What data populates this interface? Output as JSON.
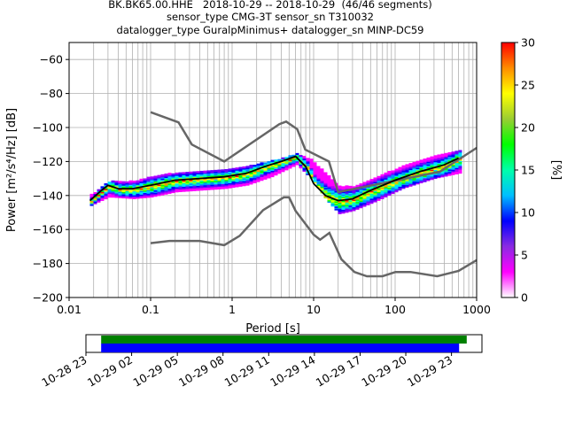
{
  "chart_data": {
    "type": "heatmap",
    "title_lines": [
      "BK.BK65.00.HHE   2018-10-29 -- 2018-10-29  (46/46 segments)",
      "sensor_type CMG-3T sensor_sn T310032",
      "datalogger_type GuralpMinimus+ datalogger_sn MINP-DC59"
    ],
    "xlabel": "Period [s]",
    "ylabel": "Power [m²/s⁴/Hz] [dB]",
    "xscale": "log",
    "xlim": [
      0.01,
      1000
    ],
    "ylim": [
      -200,
      -50
    ],
    "x_ticks": [
      0.01,
      0.1,
      1,
      10,
      100,
      1000
    ],
    "x_tick_labels": [
      "0.01",
      "0.1",
      "1",
      "10",
      "100",
      "1000"
    ],
    "y_ticks": [
      -200,
      -180,
      -160,
      -140,
      -120,
      -100,
      -80,
      -60
    ],
    "y_tick_labels": [
      "−200",
      "−180",
      "−160",
      "−140",
      "−120",
      "−100",
      "−80",
      "−60"
    ],
    "grid": true,
    "colorbar": {
      "label": "[%]",
      "range": [
        0,
        30
      ],
      "ticks": [
        0,
        5,
        10,
        15,
        20,
        25,
        30
      ],
      "tick_labels": [
        "0",
        "5",
        "10",
        "15",
        "20",
        "25",
        "30"
      ],
      "colors": [
        "#ffffff",
        "#ff00ff",
        "#8a2be2",
        "#0000ff",
        "#00bfff",
        "#00ffaa",
        "#00ff00",
        "#9acd32",
        "#ffff00",
        "#ff8c00",
        "#ff0000"
      ]
    },
    "nhnm": [
      {
        "x": 0.1,
        "y": -91
      },
      {
        "x": 0.22,
        "y": -97
      },
      {
        "x": 0.32,
        "y": -110
      },
      {
        "x": 0.8,
        "y": -120
      },
      {
        "x": 3.8,
        "y": -98
      },
      {
        "x": 4.6,
        "y": -96.5
      },
      {
        "x": 6.3,
        "y": -101
      },
      {
        "x": 7.9,
        "y": -113
      },
      {
        "x": 15.4,
        "y": -120
      },
      {
        "x": 20,
        "y": -138
      },
      {
        "x": 354,
        "y": -126
      },
      {
        "x": 1000,
        "y": -112
      }
    ],
    "nlnm": [
      {
        "x": 0.1,
        "y": -168
      },
      {
        "x": 0.17,
        "y": -166.7
      },
      {
        "x": 0.4,
        "y": -166.7
      },
      {
        "x": 0.8,
        "y": -169.2
      },
      {
        "x": 1.24,
        "y": -163.7
      },
      {
        "x": 2.4,
        "y": -148.6
      },
      {
        "x": 4.3,
        "y": -141.1
      },
      {
        "x": 5,
        "y": -141.1
      },
      {
        "x": 6,
        "y": -149
      },
      {
        "x": 10,
        "y": -163
      },
      {
        "x": 12,
        "y": -166
      },
      {
        "x": 15.6,
        "y": -162
      },
      {
        "x": 21.9,
        "y": -177.5
      },
      {
        "x": 31.6,
        "y": -185
      },
      {
        "x": 45,
        "y": -187.5
      },
      {
        "x": 70,
        "y": -187.5
      },
      {
        "x": 101,
        "y": -185
      },
      {
        "x": 154,
        "y": -185
      },
      {
        "x": 328,
        "y": -187.5
      },
      {
        "x": 600,
        "y": -184.4
      },
      {
        "x": 1000,
        "y": -178
      }
    ],
    "mean_psd": [
      {
        "x": 0.018,
        "y": -143
      },
      {
        "x": 0.025,
        "y": -137
      },
      {
        "x": 0.03,
        "y": -134
      },
      {
        "x": 0.04,
        "y": -136
      },
      {
        "x": 0.06,
        "y": -136
      },
      {
        "x": 0.1,
        "y": -134
      },
      {
        "x": 0.2,
        "y": -131
      },
      {
        "x": 0.4,
        "y": -130
      },
      {
        "x": 0.8,
        "y": -129
      },
      {
        "x": 1.5,
        "y": -127
      },
      {
        "x": 2.5,
        "y": -123
      },
      {
        "x": 4,
        "y": -120
      },
      {
        "x": 6,
        "y": -117
      },
      {
        "x": 8,
        "y": -123
      },
      {
        "x": 10,
        "y": -133
      },
      {
        "x": 14,
        "y": -140
      },
      {
        "x": 20,
        "y": -143
      },
      {
        "x": 30,
        "y": -142
      },
      {
        "x": 50,
        "y": -137
      },
      {
        "x": 100,
        "y": -131
      },
      {
        "x": 200,
        "y": -126
      },
      {
        "x": 400,
        "y": -122
      },
      {
        "x": 600,
        "y": -118
      }
    ],
    "psd_band": [
      {
        "x": 0.018,
        "min": -145,
        "max": -139
      },
      {
        "x": 0.03,
        "min": -140,
        "max": -131
      },
      {
        "x": 0.06,
        "min": -141,
        "max": -131
      },
      {
        "x": 0.1,
        "min": -140,
        "max": -128
      },
      {
        "x": 0.2,
        "min": -137,
        "max": -126
      },
      {
        "x": 0.4,
        "min": -136,
        "max": -125
      },
      {
        "x": 0.8,
        "min": -135,
        "max": -124
      },
      {
        "x": 1.5,
        "min": -133,
        "max": -122
      },
      {
        "x": 3,
        "min": -128,
        "max": -119
      },
      {
        "x": 6,
        "min": -121,
        "max": -115
      },
      {
        "x": 9,
        "min": -129,
        "max": -118
      },
      {
        "x": 14,
        "min": -142,
        "max": -127
      },
      {
        "x": 20,
        "min": -150,
        "max": -134
      },
      {
        "x": 30,
        "min": -148,
        "max": -134
      },
      {
        "x": 60,
        "min": -142,
        "max": -128
      },
      {
        "x": 120,
        "min": -135,
        "max": -122
      },
      {
        "x": 300,
        "min": -129,
        "max": -116
      },
      {
        "x": 600,
        "min": -126,
        "max": -113
      }
    ],
    "coverage": {
      "xlim": [
        "2018-10-28 23:00",
        "2018-10-30 01:00"
      ],
      "tick_labels": [
        "10-28 23",
        "10-29 02",
        "10-29 05",
        "10-29 08",
        "10-29 11",
        "10-29 14",
        "10-29 17",
        "10-29 20",
        "10-29 23"
      ],
      "tick_times": [
        "2018-10-28 23:00",
        "2018-10-29 02:00",
        "2018-10-29 05:00",
        "2018-10-29 08:00",
        "2018-10-29 11:00",
        "2018-10-29 14:00",
        "2018-10-29 17:00",
        "2018-10-29 20:00",
        "2018-10-29 23:00"
      ],
      "data_span": [
        "2018-10-29 00:00",
        "2018-10-30 00:00"
      ],
      "processed_span": [
        "2018-10-29 00:00",
        "2018-10-29 23:30"
      ],
      "data_color": "#008000",
      "processed_color": "#0000ff"
    }
  }
}
